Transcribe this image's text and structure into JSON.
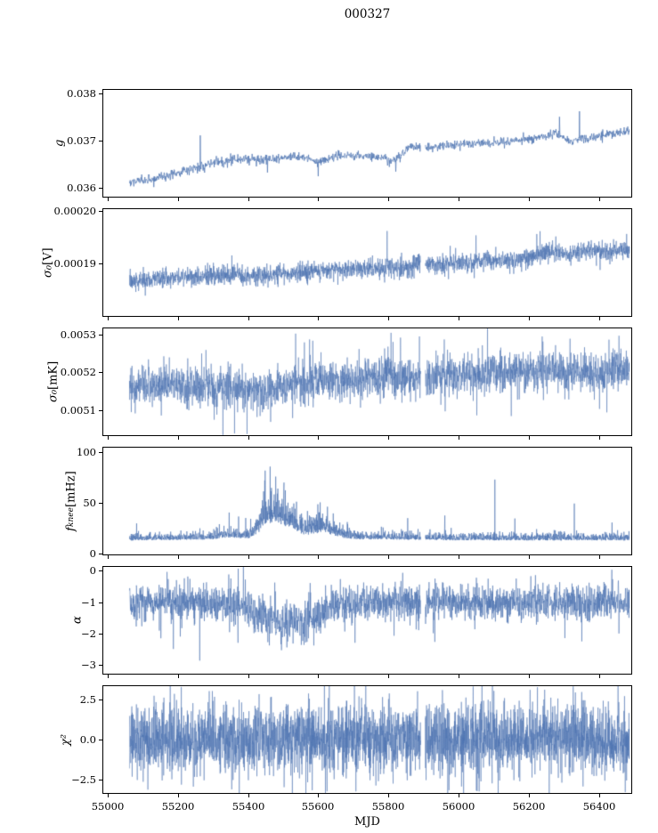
{
  "chart_data": {
    "type": "line",
    "title": "000327",
    "xlabel": "MJD",
    "line_color": "#4c72b0",
    "axis_color": "#000000",
    "xlim": [
      54985,
      56495
    ],
    "x_range_data": [
      55060,
      56490
    ],
    "gap": [
      55893,
      55906
    ],
    "xticks": [
      {
        "v": 55000,
        "label": "55000"
      },
      {
        "v": 55200,
        "label": "55200"
      },
      {
        "v": 55400,
        "label": "55400"
      },
      {
        "v": 55600,
        "label": "55600"
      },
      {
        "v": 55800,
        "label": "55800"
      },
      {
        "v": 56000,
        "label": "56000"
      },
      {
        "v": 56200,
        "label": "56200"
      },
      {
        "v": 56400,
        "label": "56400"
      }
    ],
    "panels": [
      {
        "name": "g",
        "ylabel": {
          "main": "g",
          "sub": "",
          "unit": ""
        },
        "ylim": [
          0.0358,
          0.0381
        ],
        "yticks": [
          {
            "v": 0.038,
            "label": "0.038"
          },
          {
            "v": 0.037,
            "label": "0.037"
          },
          {
            "v": 0.036,
            "label": "0.036"
          }
        ],
        "series": {
          "n": 1400,
          "lw": 0.7,
          "noise": 5e-05,
          "heavy": 0.02,
          "trend": [
            [
              55060,
              0.03612
            ],
            [
              55120,
              0.03618
            ],
            [
              55200,
              0.03632
            ],
            [
              55260,
              0.03645
            ],
            [
              55320,
              0.03655
            ],
            [
              55400,
              0.03662
            ],
            [
              55470,
              0.0366
            ],
            [
              55540,
              0.03668
            ],
            [
              55600,
              0.03655
            ],
            [
              55660,
              0.03668
            ],
            [
              55720,
              0.03668
            ],
            [
              55780,
              0.03665
            ],
            [
              55820,
              0.03658
            ],
            [
              55860,
              0.03688
            ],
            [
              55920,
              0.03685
            ],
            [
              55980,
              0.03692
            ],
            [
              56040,
              0.03695
            ],
            [
              56100,
              0.03698
            ],
            [
              56160,
              0.037
            ],
            [
              56220,
              0.03705
            ],
            [
              56280,
              0.03718
            ],
            [
              56320,
              0.037
            ],
            [
              56360,
              0.03705
            ],
            [
              56420,
              0.03712
            ],
            [
              56490,
              0.03722
            ]
          ],
          "spikes": [
            [
              55262,
              0.03712
            ],
            [
              55455,
              0.03632
            ],
            [
              55600,
              0.03624
            ],
            [
              55822,
              0.03634
            ],
            [
              56290,
              0.03752
            ],
            [
              56347,
              0.03764
            ],
            [
              56360,
              0.03712
            ]
          ]
        }
      },
      {
        "name": "sigma0_V",
        "ylabel": {
          "main": "σ₀",
          "sub": "",
          "unit": " [V]"
        },
        "ylim": [
          0.00018,
          0.0002005
        ],
        "yticks": [
          {
            "v": 0.0002,
            "label": "0.00020"
          },
          {
            "v": 0.00019,
            "label": "0.00019"
          }
        ],
        "series": {
          "n": 2600,
          "lw": 0.55,
          "noise": 9e-07,
          "heavy": 0.03,
          "trend": [
            [
              55060,
              0.0001867
            ],
            [
              55150,
              0.0001872
            ],
            [
              55250,
              0.0001876
            ],
            [
              55350,
              0.0001879
            ],
            [
              55420,
              0.0001874
            ],
            [
              55480,
              0.0001881
            ],
            [
              55560,
              0.0001884
            ],
            [
              55640,
              0.0001888
            ],
            [
              55720,
              0.0001892
            ],
            [
              55800,
              0.0001892
            ],
            [
              55880,
              0.0001897
            ],
            [
              55960,
              0.0001901
            ],
            [
              56040,
              0.0001903
            ],
            [
              56120,
              0.0001907
            ],
            [
              56200,
              0.000191
            ],
            [
              56260,
              0.0001925
            ],
            [
              56320,
              0.000192
            ],
            [
              56400,
              0.0001924
            ],
            [
              56490,
              0.0001926
            ]
          ],
          "spikes": [
            [
              55797,
              0.0001963
            ],
            [
              56270,
              0.0001945
            ]
          ]
        }
      },
      {
        "name": "sigma0_mK",
        "ylabel": {
          "main": "σ₀",
          "sub": "",
          "unit": " [mK]"
        },
        "ylim": [
          0.00503,
          0.00532
        ],
        "yticks": [
          {
            "v": 0.0053,
            "label": "0.0053"
          },
          {
            "v": 0.0052,
            "label": "0.0052"
          },
          {
            "v": 0.0051,
            "label": "0.0051"
          }
        ],
        "series": {
          "n": 2800,
          "lw": 0.5,
          "noise": 2.6e-05,
          "heavy": 0.05,
          "trend": [
            [
              55060,
              0.005163
            ],
            [
              55160,
              0.005168
            ],
            [
              55260,
              0.005165
            ],
            [
              55340,
              0.00516
            ],
            [
              55400,
              0.00515
            ],
            [
              55440,
              0.005148
            ],
            [
              55490,
              0.005158
            ],
            [
              55560,
              0.005172
            ],
            [
              55610,
              0.005185
            ],
            [
              55660,
              0.005175
            ],
            [
              55720,
              0.005182
            ],
            [
              55790,
              0.005194
            ],
            [
              55860,
              0.005188
            ],
            [
              55930,
              0.005186
            ],
            [
              56000,
              0.005194
            ],
            [
              56080,
              0.005198
            ],
            [
              56160,
              0.0052
            ],
            [
              56240,
              0.005202
            ],
            [
              56320,
              0.005203
            ],
            [
              56400,
              0.005203
            ],
            [
              56490,
              0.005204
            ]
          ],
          "spikes": [
            [
              55302,
              0.005072
            ],
            [
              55560,
              0.005282
            ],
            [
              55575,
              0.00529
            ],
            [
              55808,
              0.005308
            ],
            [
              55835,
              0.005295
            ],
            [
              55960,
              0.00529
            ],
            [
              56152,
              0.005082
            ],
            [
              56240,
              0.005298
            ],
            [
              56320,
              0.005292
            ],
            [
              56425,
              0.005092
            ],
            [
              56460,
              0.0053
            ]
          ]
        }
      },
      {
        "name": "fknee",
        "ylabel": {
          "main": "f",
          "sub": "knee",
          "unit": " [mHz]"
        },
        "ylim": [
          -2,
          105
        ],
        "yticks": [
          {
            "v": 100,
            "label": "100"
          },
          {
            "v": 50,
            "label": "50"
          },
          {
            "v": 0,
            "label": "0"
          }
        ],
        "series": {
          "n": 2600,
          "lw": 0.6,
          "abs": true,
          "heavy": 0.04,
          "noise": 3.5,
          "noise_profile": [
            [
              55060,
              3
            ],
            [
              55300,
              3.5
            ],
            [
              55330,
              6
            ],
            [
              55360,
              4
            ],
            [
              55420,
              5
            ],
            [
              55440,
              16
            ],
            [
              55470,
              17
            ],
            [
              55510,
              13
            ],
            [
              55550,
              9
            ],
            [
              55590,
              10
            ],
            [
              55630,
              9
            ],
            [
              55670,
              5
            ],
            [
              55720,
              3.5
            ],
            [
              56490,
              3.5
            ]
          ],
          "trend": [
            [
              55060,
              12
            ],
            [
              55300,
              13
            ],
            [
              55340,
              15
            ],
            [
              55400,
              14
            ],
            [
              55430,
              20
            ],
            [
              55450,
              28
            ],
            [
              55480,
              30
            ],
            [
              55520,
              24
            ],
            [
              55560,
              17
            ],
            [
              55590,
              19
            ],
            [
              55620,
              20
            ],
            [
              55660,
              15
            ],
            [
              55710,
              13
            ],
            [
              55800,
              13
            ],
            [
              56000,
              12
            ],
            [
              56200,
              12
            ],
            [
              56490,
              12
            ]
          ],
          "spikes": [
            [
              55345,
              40
            ],
            [
              55372,
              36
            ],
            [
              55448,
              82
            ],
            [
              55462,
              86
            ],
            [
              55478,
              76
            ],
            [
              55502,
              70
            ],
            [
              55905,
              36
            ],
            [
              55962,
              37
            ],
            [
              56105,
              73
            ],
            [
              56162,
              34
            ],
            [
              56332,
              49
            ],
            [
              56440,
              30
            ]
          ]
        }
      },
      {
        "name": "alpha",
        "ylabel": {
          "main": "α",
          "sub": "",
          "unit": ""
        },
        "ylim": [
          -3.3,
          0.15
        ],
        "yticks": [
          {
            "v": 0,
            "label": "0"
          },
          {
            "v": -1,
            "label": "−1"
          },
          {
            "v": -2,
            "label": "−2"
          },
          {
            "v": -3,
            "label": "−3"
          }
        ],
        "series": {
          "n": 2600,
          "lw": 0.55,
          "noise": 0.28,
          "heavy": 0.06,
          "noise_profile": [
            [
              55060,
              0.26
            ],
            [
              55350,
              0.3
            ],
            [
              55420,
              0.32
            ],
            [
              55500,
              0.34
            ],
            [
              55600,
              0.3
            ],
            [
              55700,
              0.27
            ],
            [
              56490,
              0.27
            ]
          ],
          "trend": [
            [
              55060,
              -1.0
            ],
            [
              55300,
              -1.02
            ],
            [
              55380,
              -1.1
            ],
            [
              55420,
              -1.3
            ],
            [
              55460,
              -1.55
            ],
            [
              55510,
              -1.62
            ],
            [
              55560,
              -1.55
            ],
            [
              55600,
              -1.35
            ],
            [
              55640,
              -1.15
            ],
            [
              55690,
              -1.05
            ],
            [
              55750,
              -1.0
            ],
            [
              56490,
              -1.0
            ]
          ],
          "spikes": [
            [
              55205,
              -2.1
            ],
            [
              55510,
              -2.45
            ],
            [
              55705,
              -2.3
            ],
            [
              56052,
              -0.2
            ],
            [
              56305,
              -2.15
            ],
            [
              56460,
              -2.0
            ]
          ]
        }
      },
      {
        "name": "chi2",
        "ylabel": {
          "main": "χ²",
          "sub": "",
          "unit": ""
        },
        "ylim": [
          -3.4,
          3.4
        ],
        "yticks": [
          {
            "v": 2.5,
            "label": "2.5"
          },
          {
            "v": 0,
            "label": "0.0"
          },
          {
            "v": -2.5,
            "label": "−2.5"
          }
        ],
        "series": {
          "n": 3400,
          "lw": 0.5,
          "noise": 1.05,
          "heavy": 0.05,
          "trend": [
            [
              55060,
              0
            ],
            [
              56490,
              0
            ]
          ],
          "spikes": [
            [
              55208,
              3.35
            ],
            [
              55625,
              -3.3
            ],
            [
              55905,
              -2.9
            ],
            [
              56052,
              -3.25
            ],
            [
              56060,
              -3.3
            ],
            [
              56102,
              3.1
            ],
            [
              56335,
              3.0
            ],
            [
              56478,
              -3.35
            ]
          ]
        }
      }
    ]
  }
}
